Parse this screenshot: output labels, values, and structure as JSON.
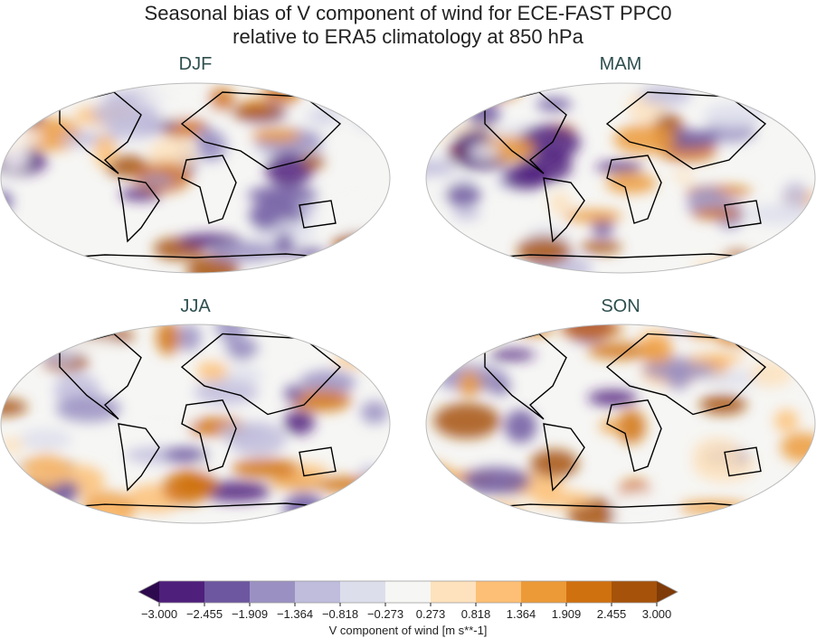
{
  "title_line1": "Seasonal bias of V component of wind for ECE-FAST PPC0",
  "title_line2": "relative to ERA5 climatology at 850 hPa",
  "panels": [
    {
      "label": "DJF"
    },
    {
      "label": "MAM"
    },
    {
      "label": "JJA"
    },
    {
      "label": "SON"
    }
  ],
  "colorbar": {
    "label": "V component of wind [m s**-1]",
    "ticks": [
      "−3.000",
      "−2.455",
      "−1.909",
      "−1.364",
      "−0.818",
      "−0.273",
      "0.273",
      "0.818",
      "1.364",
      "1.909",
      "2.455",
      "3.000"
    ],
    "colors": [
      "#4f1f7c",
      "#6d57a0",
      "#9a91c2",
      "#bfbcdc",
      "#dddeec",
      "#f6f6f4",
      "#fde2bd",
      "#fdbf75",
      "#ec9a38",
      "#d0710f",
      "#a6520a"
    ],
    "under_color": "#2d0a4e",
    "over_color": "#7f3b08",
    "extend": "both"
  }
}
